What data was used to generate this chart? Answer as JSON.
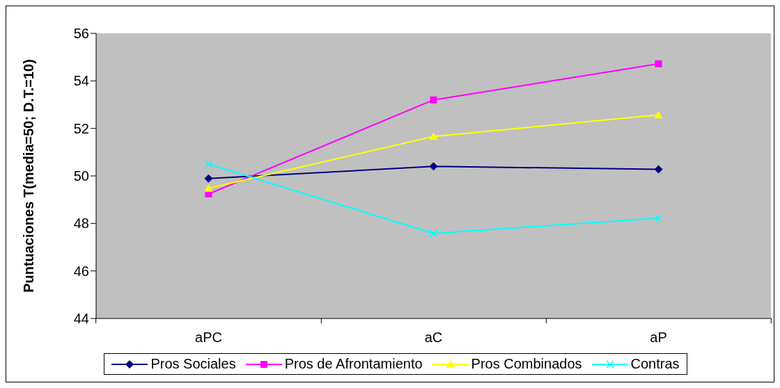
{
  "chart_data": {
    "type": "line",
    "ylabel": "Puntuaciones T(media=50; D.T.=10)",
    "categories": [
      "aPC",
      "aC",
      "aP"
    ],
    "ylim": [
      44,
      56
    ],
    "yticks": [
      44,
      46,
      48,
      50,
      52,
      54,
      56
    ],
    "grid": false,
    "legend": "bottom",
    "series": [
      {
        "name": "Pros Sociales",
        "color": "#000080",
        "marker": "diamond",
        "values": [
          49.89,
          50.4,
          50.28
        ]
      },
      {
        "name": "Pros de Afrontamiento",
        "color": "#ff00ff",
        "marker": "square",
        "values": [
          49.24,
          53.2,
          54.72
        ]
      },
      {
        "name": "Pros Combinados",
        "color": "#ffff00",
        "marker": "triangle",
        "values": [
          49.48,
          51.66,
          52.57
        ]
      },
      {
        "name": "Contras",
        "color": "#00ffff",
        "marker": "cross",
        "values": [
          50.5,
          47.58,
          48.22
        ]
      }
    ]
  }
}
